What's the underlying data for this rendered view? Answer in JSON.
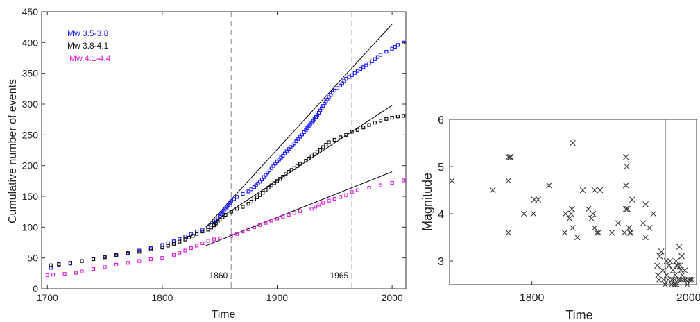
{
  "chart_data": [
    {
      "type": "scatter",
      "title": "",
      "xlabel": "Time",
      "ylabel": "Cumulative number of events",
      "xlim": [
        1695,
        2012
      ],
      "ylim": [
        0,
        450
      ],
      "xticks": [
        1700,
        1800,
        1900,
        2000
      ],
      "yticks": [
        0,
        50,
        100,
        150,
        200,
        250,
        300,
        350,
        400,
        450
      ],
      "grid": false,
      "legend_position": "top-left",
      "colors": {
        "mw35": "#1a1aff",
        "mw38": "#111111",
        "mw41": "#e020e0",
        "fit": "#000000",
        "vline": "#999999"
      },
      "vlines": [
        {
          "x": 1860,
          "label": "1860"
        },
        {
          "x": 1965,
          "label": "1965"
        }
      ],
      "series": [
        {
          "name": "Mw 3.5-3.8",
          "style": "points",
          "x": [
            1703,
            1710,
            1720,
            1730,
            1740,
            1750,
            1760,
            1770,
            1780,
            1790,
            1800,
            1810,
            1820,
            1830,
            1835,
            1840,
            1845,
            1850,
            1855,
            1860,
            1865,
            1870,
            1875,
            1880,
            1885,
            1890,
            1895,
            1900,
            1905,
            1910,
            1915,
            1920,
            1925,
            1930,
            1935,
            1940,
            1945,
            1950,
            1955,
            1960,
            1965,
            1970,
            1975,
            1980,
            1985,
            1990,
            1995,
            2000,
            2005,
            2010
          ],
          "y": [
            34,
            38,
            41,
            45,
            48,
            52,
            55,
            58,
            62,
            66,
            71,
            77,
            85,
            93,
            96,
            100,
            108,
            118,
            130,
            142,
            149,
            154,
            158,
            165,
            174,
            185,
            196,
            207,
            216,
            227,
            236,
            247,
            258,
            270,
            282,
            297,
            311,
            322,
            330,
            341,
            347,
            354,
            360,
            366,
            373,
            380,
            385,
            390,
            396,
            400
          ]
        },
        {
          "name": "Mw 3.8-4.1",
          "style": "points",
          "x": [
            1703,
            1710,
            1720,
            1730,
            1740,
            1750,
            1760,
            1770,
            1780,
            1790,
            1800,
            1810,
            1820,
            1830,
            1835,
            1840,
            1845,
            1850,
            1855,
            1860,
            1865,
            1870,
            1875,
            1880,
            1885,
            1890,
            1895,
            1900,
            1905,
            1910,
            1915,
            1920,
            1925,
            1930,
            1935,
            1940,
            1945,
            1950,
            1955,
            1960,
            1965,
            1970,
            1975,
            1980,
            1985,
            1990,
            1995,
            2000,
            2005,
            2010
          ],
          "y": [
            38,
            40,
            42,
            45,
            48,
            51,
            54,
            57,
            60,
            64,
            67,
            73,
            80,
            89,
            93,
            96,
            103,
            112,
            120,
            125,
            130,
            133,
            138,
            145,
            152,
            160,
            168,
            175,
            182,
            190,
            196,
            203,
            208,
            215,
            222,
            230,
            238,
            242,
            246,
            250,
            255,
            258,
            262,
            266,
            270,
            273,
            276,
            278,
            280,
            281
          ]
        },
        {
          "name": "Mw 4.1-4.4",
          "style": "points",
          "x": [
            1700,
            1705,
            1715,
            1725,
            1730,
            1740,
            1750,
            1760,
            1770,
            1780,
            1790,
            1800,
            1810,
            1820,
            1830,
            1840,
            1845,
            1850,
            1860,
            1865,
            1870,
            1880,
            1890,
            1900,
            1910,
            1920,
            1930,
            1940,
            1945,
            1950,
            1960,
            1965,
            1970,
            1980,
            1990,
            2000,
            2010
          ],
          "y": [
            22,
            23,
            24,
            26,
            28,
            32,
            35,
            39,
            42,
            45,
            48,
            50,
            55,
            62,
            70,
            78,
            80,
            82,
            86,
            89,
            93,
            100,
            107,
            114,
            120,
            126,
            130,
            140,
            143,
            146,
            152,
            157,
            160,
            164,
            168,
            172,
            176
          ]
        },
        {
          "name": "",
          "style": "line",
          "x": [
            1838,
            2000
          ],
          "y": [
            100,
            430
          ]
        },
        {
          "name": "",
          "style": "line",
          "x": [
            1838,
            2000
          ],
          "y": [
            100,
            298
          ]
        },
        {
          "name": "",
          "style": "line",
          "x": [
            1838,
            2000
          ],
          "y": [
            70,
            190
          ]
        }
      ]
    },
    {
      "type": "scatter",
      "title": "",
      "xlabel": "Time",
      "ylabel": "Magnitude",
      "xlim": [
        1695,
        2010
      ],
      "ylim": [
        2.5,
        6
      ],
      "xticks": [
        1800,
        2000
      ],
      "yticks": [
        3,
        4,
        5,
        6
      ],
      "grid": false,
      "marker": "x",
      "colors": {
        "points": "#3a3a3a",
        "vline": "#555555"
      },
      "vlines": [
        {
          "x": 1970,
          "label": ""
        }
      ],
      "points": [
        [
          1698,
          4.7
        ],
        [
          1750,
          4.5
        ],
        [
          1770,
          4.7
        ],
        [
          1770,
          5.2
        ],
        [
          1772,
          5.2
        ],
        [
          1773,
          5.2
        ],
        [
          1770,
          3.6
        ],
        [
          1790,
          4.0
        ],
        [
          1802,
          4.0
        ],
        [
          1803,
          4.3
        ],
        [
          1808,
          4.3
        ],
        [
          1822,
          4.6
        ],
        [
          1842,
          3.6
        ],
        [
          1843,
          4.0
        ],
        [
          1848,
          3.9
        ],
        [
          1850,
          4.0
        ],
        [
          1851,
          4.1
        ],
        [
          1852,
          5.5
        ],
        [
          1852,
          3.7
        ],
        [
          1858,
          3.5
        ],
        [
          1865,
          4.5
        ],
        [
          1872,
          4.1
        ],
        [
          1876,
          3.9
        ],
        [
          1878,
          4.0
        ],
        [
          1880,
          3.7
        ],
        [
          1880,
          4.5
        ],
        [
          1883,
          3.6
        ],
        [
          1885,
          3.6
        ],
        [
          1887,
          4.5
        ],
        [
          1902,
          3.6
        ],
        [
          1910,
          3.8
        ],
        [
          1918,
          3.6
        ],
        [
          1920,
          5.2
        ],
        [
          1921,
          5.0
        ],
        [
          1920,
          4.6
        ],
        [
          1920,
          4.1
        ],
        [
          1922,
          4.1
        ],
        [
          1924,
          3.7
        ],
        [
          1925,
          3.6
        ],
        [
          1926,
          3.6
        ],
        [
          1928,
          4.3
        ],
        [
          1942,
          3.8
        ],
        [
          1945,
          3.5
        ],
        [
          1945,
          4.2
        ],
        [
          1950,
          3.7
        ],
        [
          1955,
          4.0
        ],
        [
          1960,
          2.9
        ],
        [
          1961,
          2.7
        ],
        [
          1962,
          2.6
        ],
        [
          1963,
          3.1
        ],
        [
          1965,
          3.2
        ],
        [
          1967,
          2.8
        ],
        [
          1968,
          2.6
        ],
        [
          1970,
          2.5
        ],
        [
          1972,
          2.7
        ],
        [
          1974,
          2.6
        ],
        [
          1975,
          2.9
        ],
        [
          1976,
          3.0
        ],
        [
          1978,
          2.5
        ],
        [
          1979,
          2.6
        ],
        [
          1980,
          2.8
        ],
        [
          1981,
          2.5
        ],
        [
          1982,
          2.6
        ],
        [
          1983,
          2.7
        ],
        [
          1984,
          3.0
        ],
        [
          1985,
          2.9
        ],
        [
          1986,
          2.9
        ],
        [
          1987,
          2.6
        ],
        [
          1988,
          3.3
        ],
        [
          1989,
          2.9
        ],
        [
          1990,
          2.8
        ],
        [
          1991,
          3.1
        ],
        [
          1992,
          2.7
        ],
        [
          1994,
          2.6
        ],
        [
          1995,
          2.8
        ],
        [
          1996,
          2.6
        ],
        [
          1998,
          2.5
        ],
        [
          2000,
          2.6
        ],
        [
          2002,
          2.6
        ],
        [
          2004,
          2.6
        ],
        [
          1972,
          3.0
        ],
        [
          1983,
          2.5
        ],
        [
          1985,
          2.5
        ],
        [
          1990,
          2.6
        ]
      ]
    }
  ]
}
